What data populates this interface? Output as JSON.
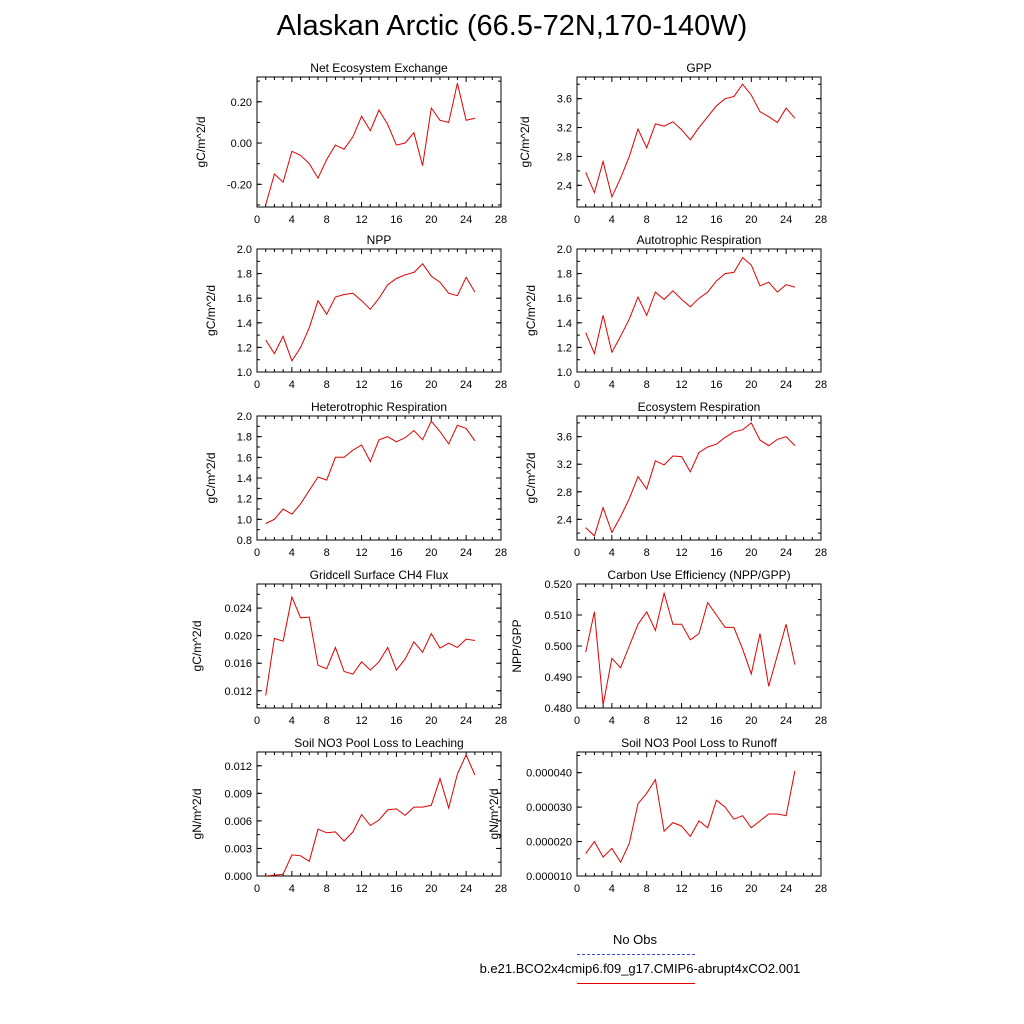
{
  "title": "Alaskan Arctic (66.5-72N,170-140W)",
  "legend": {
    "obs_label": "No Obs",
    "obs_color": "#3b4bd6",
    "case_label": "b.e21.BCO2x4cmip6.f09_g17.CMIP6-abrupt4xCO2.001",
    "case_color": "#e00000"
  },
  "chart_data": [
    {
      "type": "line",
      "title": "Net Ecosystem Exchange",
      "ylabel": "gC/m^2/d",
      "xlim": [
        0,
        28
      ],
      "xticks": [
        "0",
        "4",
        "8",
        "12",
        "16",
        "20",
        "24",
        "28"
      ],
      "ylim": [
        -0.31,
        0.32
      ],
      "yticks": [
        -0.2,
        0.0,
        0.2
      ],
      "ytick_labels": [
        "-0.20",
        "0.00",
        "0.20"
      ],
      "x": [
        1,
        2,
        3,
        4,
        5,
        6,
        7,
        8,
        9,
        10,
        11,
        12,
        13,
        14,
        15,
        16,
        17,
        18,
        19,
        20,
        21,
        22,
        23,
        24,
        25
      ],
      "series": [
        {
          "color": "#e00000",
          "values": [
            -0.3,
            -0.15,
            -0.19,
            -0.04,
            -0.06,
            -0.1,
            -0.17,
            -0.08,
            -0.01,
            -0.03,
            0.03,
            0.13,
            0.06,
            0.16,
            0.09,
            -0.01,
            0.0,
            0.05,
            -0.11,
            0.17,
            0.11,
            0.1,
            0.29,
            0.11,
            0.12
          ]
        }
      ]
    },
    {
      "type": "line",
      "title": "GPP",
      "ylabel": "gC/m^2/d",
      "xlim": [
        0,
        28
      ],
      "xticks": [
        "0",
        "4",
        "8",
        "12",
        "16",
        "20",
        "24",
        "28"
      ],
      "ylim": [
        2.1,
        3.9
      ],
      "yticks": [
        2.4,
        2.8,
        3.2,
        3.6
      ],
      "ytick_labels": [
        "2.4",
        "2.8",
        "3.2",
        "3.6"
      ],
      "x": [
        1,
        2,
        3,
        4,
        5,
        6,
        7,
        8,
        9,
        10,
        11,
        12,
        13,
        14,
        15,
        16,
        17,
        18,
        19,
        20,
        21,
        22,
        23,
        24,
        25
      ],
      "series": [
        {
          "color": "#e00000",
          "values": [
            2.58,
            2.3,
            2.73,
            2.24,
            2.5,
            2.8,
            3.18,
            2.92,
            3.25,
            3.22,
            3.28,
            3.17,
            3.03,
            3.2,
            3.35,
            3.5,
            3.6,
            3.63,
            3.8,
            3.65,
            3.42,
            3.35,
            3.27,
            3.47,
            3.33
          ]
        }
      ]
    },
    {
      "type": "line",
      "title": "NPP",
      "ylabel": "gC/m^2/d",
      "xlim": [
        0,
        28
      ],
      "xticks": [
        "0",
        "4",
        "8",
        "12",
        "16",
        "20",
        "24",
        "28"
      ],
      "ylim": [
        1.0,
        2.0
      ],
      "yticks": [
        1.0,
        1.2,
        1.4,
        1.6,
        1.8,
        2.0
      ],
      "ytick_labels": [
        "1.0",
        "1.2",
        "1.4",
        "1.6",
        "1.8",
        "2.0"
      ],
      "x": [
        1,
        2,
        3,
        4,
        5,
        6,
        7,
        8,
        9,
        10,
        11,
        12,
        13,
        14,
        15,
        16,
        17,
        18,
        19,
        20,
        21,
        22,
        23,
        24,
        25
      ],
      "series": [
        {
          "color": "#e00000",
          "values": [
            1.26,
            1.15,
            1.29,
            1.09,
            1.2,
            1.36,
            1.58,
            1.47,
            1.61,
            1.63,
            1.64,
            1.58,
            1.51,
            1.6,
            1.71,
            1.76,
            1.79,
            1.81,
            1.88,
            1.78,
            1.73,
            1.64,
            1.62,
            1.77,
            1.65
          ]
        }
      ]
    },
    {
      "type": "line",
      "title": "Autotrophic Respiration",
      "ylabel": "gC/m^2/d",
      "xlim": [
        0,
        28
      ],
      "xticks": [
        "0",
        "4",
        "8",
        "12",
        "16",
        "20",
        "24",
        "28"
      ],
      "ylim": [
        1.0,
        2.0
      ],
      "yticks": [
        1.0,
        1.2,
        1.4,
        1.6,
        1.8,
        2.0
      ],
      "ytick_labels": [
        "1.0",
        "1.2",
        "1.4",
        "1.6",
        "1.8",
        "2.0"
      ],
      "x": [
        1,
        2,
        3,
        4,
        5,
        6,
        7,
        8,
        9,
        10,
        11,
        12,
        13,
        14,
        15,
        16,
        17,
        18,
        19,
        20,
        21,
        22,
        23,
        24,
        25
      ],
      "series": [
        {
          "color": "#e00000",
          "values": [
            1.32,
            1.15,
            1.46,
            1.16,
            1.29,
            1.43,
            1.61,
            1.46,
            1.65,
            1.59,
            1.66,
            1.59,
            1.53,
            1.6,
            1.65,
            1.74,
            1.8,
            1.81,
            1.93,
            1.87,
            1.7,
            1.73,
            1.65,
            1.71,
            1.69
          ]
        }
      ]
    },
    {
      "type": "line",
      "title": "Heterotrophic Respiration",
      "ylabel": "gC/m^2/d",
      "xlim": [
        0,
        28
      ],
      "xticks": [
        "0",
        "4",
        "8",
        "12",
        "16",
        "20",
        "24",
        "28"
      ],
      "ylim": [
        0.8,
        2.0
      ],
      "yticks": [
        0.8,
        1.0,
        1.2,
        1.4,
        1.6,
        1.8,
        2.0
      ],
      "ytick_labels": [
        "0.8",
        "1.0",
        "1.2",
        "1.4",
        "1.6",
        "1.8",
        "2.0"
      ],
      "x": [
        1,
        2,
        3,
        4,
        5,
        6,
        7,
        8,
        9,
        10,
        11,
        12,
        13,
        14,
        15,
        16,
        17,
        18,
        19,
        20,
        21,
        22,
        23,
        24,
        25
      ],
      "series": [
        {
          "color": "#e00000",
          "values": [
            0.96,
            1.0,
            1.1,
            1.05,
            1.15,
            1.28,
            1.41,
            1.38,
            1.6,
            1.6,
            1.67,
            1.72,
            1.56,
            1.77,
            1.8,
            1.75,
            1.79,
            1.86,
            1.77,
            1.95,
            1.85,
            1.73,
            1.91,
            1.88,
            1.76
          ]
        }
      ]
    },
    {
      "type": "line",
      "title": "Ecosystem Respiration",
      "ylabel": "gC/m^2/d",
      "xlim": [
        0,
        28
      ],
      "xticks": [
        "0",
        "4",
        "8",
        "12",
        "16",
        "20",
        "24",
        "28"
      ],
      "ylim": [
        2.1,
        3.9
      ],
      "yticks": [
        2.4,
        2.8,
        3.2,
        3.6
      ],
      "ytick_labels": [
        "2.4",
        "2.8",
        "3.2",
        "3.6"
      ],
      "x": [
        1,
        2,
        3,
        4,
        5,
        6,
        7,
        8,
        9,
        10,
        11,
        12,
        13,
        14,
        15,
        16,
        17,
        18,
        19,
        20,
        21,
        22,
        23,
        24,
        25
      ],
      "series": [
        {
          "color": "#e00000",
          "values": [
            2.28,
            2.16,
            2.57,
            2.21,
            2.44,
            2.7,
            3.02,
            2.84,
            3.25,
            3.19,
            3.32,
            3.31,
            3.09,
            3.37,
            3.45,
            3.49,
            3.59,
            3.67,
            3.7,
            3.8,
            3.55,
            3.47,
            3.56,
            3.6,
            3.47
          ]
        }
      ]
    },
    {
      "type": "line",
      "title": "Gridcell Surface CH4 Flux",
      "ylabel": "gC/m^2/d",
      "xlim": [
        0,
        28
      ],
      "xticks": [
        "0",
        "4",
        "8",
        "12",
        "16",
        "20",
        "24",
        "28"
      ],
      "ylim": [
        0.0095,
        0.0275
      ],
      "yticks": [
        0.012,
        0.016,
        0.02,
        0.024
      ],
      "ytick_labels": [
        "0.012",
        "0.016",
        "0.020",
        "0.024"
      ],
      "x": [
        1,
        2,
        3,
        4,
        5,
        6,
        7,
        8,
        9,
        10,
        11,
        12,
        13,
        14,
        15,
        16,
        17,
        18,
        19,
        20,
        21,
        22,
        23,
        24,
        25
      ],
      "series": [
        {
          "color": "#e00000",
          "values": [
            0.0113,
            0.0196,
            0.0192,
            0.0256,
            0.0226,
            0.0227,
            0.0157,
            0.0152,
            0.0183,
            0.0148,
            0.0144,
            0.0162,
            0.015,
            0.0162,
            0.0183,
            0.015,
            0.0166,
            0.0191,
            0.0176,
            0.0203,
            0.0182,
            0.0189,
            0.0183,
            0.0195,
            0.0193
          ]
        }
      ]
    },
    {
      "type": "line",
      "title": "Carbon Use Efficiency (NPP/GPP)",
      "ylabel": "NPP/GPP",
      "xlim": [
        0,
        28
      ],
      "xticks": [
        "0",
        "4",
        "8",
        "12",
        "16",
        "20",
        "24",
        "28"
      ],
      "ylim": [
        0.48,
        0.52
      ],
      "yticks": [
        0.48,
        0.49,
        0.5,
        0.51,
        0.52
      ],
      "ytick_labels": [
        "0.480",
        "0.490",
        "0.500",
        "0.510",
        "0.520"
      ],
      "x": [
        1,
        2,
        3,
        4,
        5,
        6,
        7,
        8,
        9,
        10,
        11,
        12,
        13,
        14,
        15,
        16,
        17,
        18,
        19,
        20,
        21,
        22,
        23,
        24,
        25
      ],
      "series": [
        {
          "color": "#e00000",
          "values": [
            0.498,
            0.511,
            0.481,
            0.496,
            0.493,
            0.5,
            0.507,
            0.511,
            0.505,
            0.517,
            0.507,
            0.507,
            0.502,
            0.504,
            0.514,
            0.51,
            0.506,
            0.506,
            0.499,
            0.491,
            0.504,
            0.487,
            0.497,
            0.507,
            0.494
          ]
        }
      ]
    },
    {
      "type": "line",
      "title": "Soil NO3 Pool Loss to Leaching",
      "ylabel": "gN/m^2/d",
      "xlim": [
        0,
        28
      ],
      "xticks": [
        "0",
        "4",
        "8",
        "12",
        "16",
        "20",
        "24",
        "28"
      ],
      "ylim": [
        0.0,
        0.0135
      ],
      "yticks": [
        0.0,
        0.003,
        0.006,
        0.009,
        0.012
      ],
      "ytick_labels": [
        "0.000",
        "0.003",
        "0.006",
        "0.009",
        "0.012"
      ],
      "x": [
        1,
        2,
        3,
        4,
        5,
        6,
        7,
        8,
        9,
        10,
        11,
        12,
        13,
        14,
        15,
        16,
        17,
        18,
        19,
        20,
        21,
        22,
        23,
        24,
        25
      ],
      "series": [
        {
          "color": "#e00000",
          "values": [
            0.0,
            0.0001,
            0.0002,
            0.0023,
            0.0022,
            0.0016,
            0.0051,
            0.0047,
            0.0048,
            0.0038,
            0.0048,
            0.0067,
            0.0055,
            0.0061,
            0.0072,
            0.0073,
            0.0066,
            0.0075,
            0.0075,
            0.0077,
            0.0106,
            0.0074,
            0.0111,
            0.0132,
            0.011
          ]
        }
      ]
    },
    {
      "type": "line",
      "title": "Soil NO3 Pool Loss to Runoff",
      "ylabel": "gN/m^2/d",
      "xlim": [
        0,
        28
      ],
      "xticks": [
        "0",
        "4",
        "8",
        "12",
        "16",
        "20",
        "24",
        "28"
      ],
      "ylim": [
        1e-05,
        4.6e-05
      ],
      "yticks": [
        1e-05,
        2e-05,
        3e-05,
        4e-05
      ],
      "ytick_labels": [
        "0.000010",
        "0.000020",
        "0.000030",
        "0.000040"
      ],
      "x": [
        1,
        2,
        3,
        4,
        5,
        6,
        7,
        8,
        9,
        10,
        11,
        12,
        13,
        14,
        15,
        16,
        17,
        18,
        19,
        20,
        21,
        22,
        23,
        24,
        25
      ],
      "series": [
        {
          "color": "#e00000",
          "values": [
            1.65e-05,
            2e-05,
            1.55e-05,
            1.8e-05,
            1.4e-05,
            1.95e-05,
            3.1e-05,
            3.4e-05,
            3.8e-05,
            2.3e-05,
            2.55e-05,
            2.45e-05,
            2.15e-05,
            2.6e-05,
            2.4e-05,
            3.2e-05,
            3e-05,
            2.65e-05,
            2.75e-05,
            2.4e-05,
            2.6e-05,
            2.8e-05,
            2.8e-05,
            2.75e-05,
            4.05e-05
          ]
        }
      ]
    }
  ]
}
